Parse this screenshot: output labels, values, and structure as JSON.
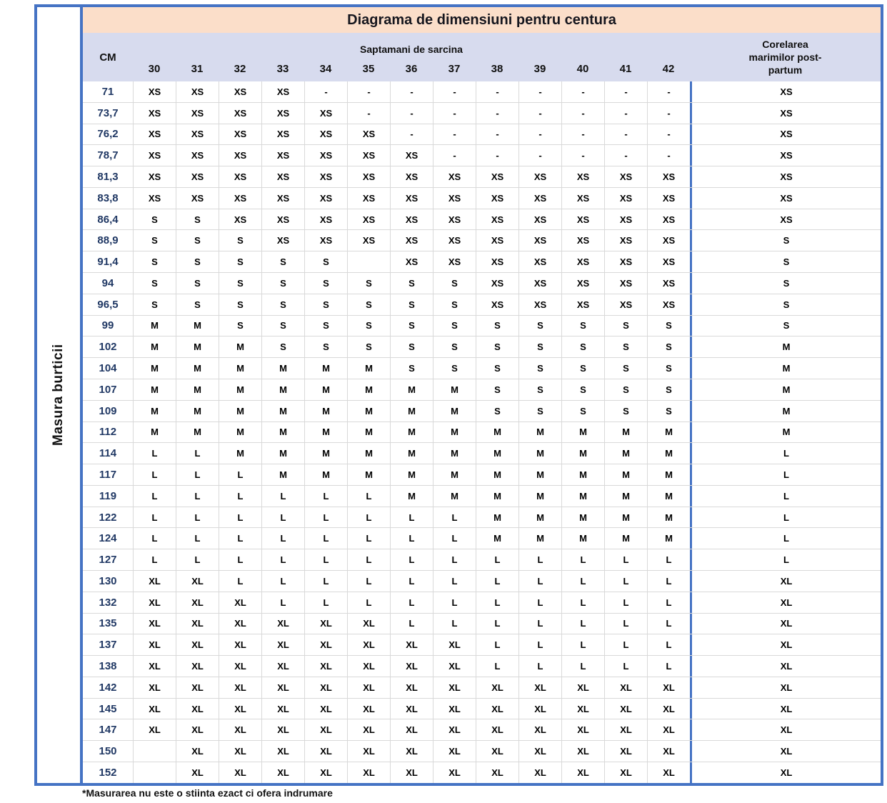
{
  "title": "Diagrama de dimensiuni pentru centura",
  "left_axis_label": "Masura burticii",
  "header": {
    "cm_label": "CM",
    "weeks_label": "Saptamani de sarcina",
    "weeks": [
      "30",
      "31",
      "32",
      "33",
      "34",
      "35",
      "36",
      "37",
      "38",
      "39",
      "40",
      "41",
      "42"
    ],
    "postpartum_label": "Corelarea marimilor post-partum"
  },
  "footnote": "*Masurarea nu este o stiinta ezact ci ofera indrumare",
  "colors": {
    "border_blue": "#4573C4",
    "title_bg": "#FBDEC9",
    "header_bg": "#D7DBEE",
    "gridline": "#D9D9D9",
    "cm_text": "#203864"
  },
  "chart_data": {
    "type": "table",
    "title": "Diagrama de dimensiuni pentru centura",
    "row_axis_label": "Masura burticii (CM)",
    "column_group_label": "Saptamani de sarcina",
    "columns": [
      "CM",
      "30",
      "31",
      "32",
      "33",
      "34",
      "35",
      "36",
      "37",
      "38",
      "39",
      "40",
      "41",
      "42",
      "Corelarea marimilor post-partum"
    ],
    "rows": [
      [
        "71",
        "XS",
        "XS",
        "XS",
        "XS",
        "-",
        "-",
        "-",
        "-",
        "-",
        "-",
        "-",
        "-",
        "-",
        "XS"
      ],
      [
        "73,7",
        "XS",
        "XS",
        "XS",
        "XS",
        "XS",
        "-",
        "-",
        "-",
        "-",
        "-",
        "-",
        "-",
        "-",
        "XS"
      ],
      [
        "76,2",
        "XS",
        "XS",
        "XS",
        "XS",
        "XS",
        "XS",
        "-",
        "-",
        "-",
        "-",
        "-",
        "-",
        "-",
        "XS"
      ],
      [
        "78,7",
        "XS",
        "XS",
        "XS",
        "XS",
        "XS",
        "XS",
        "XS",
        "-",
        "-",
        "-",
        "-",
        "-",
        "-",
        "XS"
      ],
      [
        "81,3",
        "XS",
        "XS",
        "XS",
        "XS",
        "XS",
        "XS",
        "XS",
        "XS",
        "XS",
        "XS",
        "XS",
        "XS",
        "XS",
        "XS"
      ],
      [
        "83,8",
        "XS",
        "XS",
        "XS",
        "XS",
        "XS",
        "XS",
        "XS",
        "XS",
        "XS",
        "XS",
        "XS",
        "XS",
        "XS",
        "XS"
      ],
      [
        "86,4",
        "S",
        "S",
        "XS",
        "XS",
        "XS",
        "XS",
        "XS",
        "XS",
        "XS",
        "XS",
        "XS",
        "XS",
        "XS",
        "XS"
      ],
      [
        "88,9",
        "S",
        "S",
        "S",
        "XS",
        "XS",
        "XS",
        "XS",
        "XS",
        "XS",
        "XS",
        "XS",
        "XS",
        "XS",
        "S"
      ],
      [
        "91,4",
        "S",
        "S",
        "S",
        "S",
        "S",
        "",
        "XS",
        "XS",
        "XS",
        "XS",
        "XS",
        "XS",
        "XS",
        "S"
      ],
      [
        "94",
        "S",
        "S",
        "S",
        "S",
        "S",
        "S",
        "S",
        "S",
        "XS",
        "XS",
        "XS",
        "XS",
        "XS",
        "S"
      ],
      [
        "96,5",
        "S",
        "S",
        "S",
        "S",
        "S",
        "S",
        "S",
        "S",
        "XS",
        "XS",
        "XS",
        "XS",
        "XS",
        "S"
      ],
      [
        "99",
        "M",
        "M",
        "S",
        "S",
        "S",
        "S",
        "S",
        "S",
        "S",
        "S",
        "S",
        "S",
        "S",
        "S"
      ],
      [
        "102",
        "M",
        "M",
        "M",
        "S",
        "S",
        "S",
        "S",
        "S",
        "S",
        "S",
        "S",
        "S",
        "S",
        "M"
      ],
      [
        "104",
        "M",
        "M",
        "M",
        "M",
        "M",
        "M",
        "S",
        "S",
        "S",
        "S",
        "S",
        "S",
        "S",
        "M"
      ],
      [
        "107",
        "M",
        "M",
        "M",
        "M",
        "M",
        "M",
        "M",
        "M",
        "S",
        "S",
        "S",
        "S",
        "S",
        "M"
      ],
      [
        "109",
        "M",
        "M",
        "M",
        "M",
        "M",
        "M",
        "M",
        "M",
        "S",
        "S",
        "S",
        "S",
        "S",
        "M"
      ],
      [
        "112",
        "M",
        "M",
        "M",
        "M",
        "M",
        "M",
        "M",
        "M",
        "M",
        "M",
        "M",
        "M",
        "M",
        "M"
      ],
      [
        "114",
        "L",
        "L",
        "M",
        "M",
        "M",
        "M",
        "M",
        "M",
        "M",
        "M",
        "M",
        "M",
        "M",
        "L"
      ],
      [
        "117",
        "L",
        "L",
        "L",
        "M",
        "M",
        "M",
        "M",
        "M",
        "M",
        "M",
        "M",
        "M",
        "M",
        "L"
      ],
      [
        "119",
        "L",
        "L",
        "L",
        "L",
        "L",
        "L",
        "M",
        "M",
        "M",
        "M",
        "M",
        "M",
        "M",
        "L"
      ],
      [
        "122",
        "L",
        "L",
        "L",
        "L",
        "L",
        "L",
        "L",
        "L",
        "M",
        "M",
        "M",
        "M",
        "M",
        "L"
      ],
      [
        "124",
        "L",
        "L",
        "L",
        "L",
        "L",
        "L",
        "L",
        "L",
        "M",
        "M",
        "M",
        "M",
        "M",
        "L"
      ],
      [
        "127",
        "L",
        "L",
        "L",
        "L",
        "L",
        "L",
        "L",
        "L",
        "L",
        "L",
        "L",
        "L",
        "L",
        "L"
      ],
      [
        "130",
        "XL",
        "XL",
        "L",
        "L",
        "L",
        "L",
        "L",
        "L",
        "L",
        "L",
        "L",
        "L",
        "L",
        "XL"
      ],
      [
        "132",
        "XL",
        "XL",
        "XL",
        "L",
        "L",
        "L",
        "L",
        "L",
        "L",
        "L",
        "L",
        "L",
        "L",
        "XL"
      ],
      [
        "135",
        "XL",
        "XL",
        "XL",
        "XL",
        "XL",
        "XL",
        "L",
        "L",
        "L",
        "L",
        "L",
        "L",
        "L",
        "XL"
      ],
      [
        "137",
        "XL",
        "XL",
        "XL",
        "XL",
        "XL",
        "XL",
        "XL",
        "XL",
        "L",
        "L",
        "L",
        "L",
        "L",
        "XL"
      ],
      [
        "138",
        "XL",
        "XL",
        "XL",
        "XL",
        "XL",
        "XL",
        "XL",
        "XL",
        "L",
        "L",
        "L",
        "L",
        "L",
        "XL"
      ],
      [
        "142",
        "XL",
        "XL",
        "XL",
        "XL",
        "XL",
        "XL",
        "XL",
        "XL",
        "XL",
        "XL",
        "XL",
        "XL",
        "XL",
        "XL"
      ],
      [
        "145",
        "XL",
        "XL",
        "XL",
        "XL",
        "XL",
        "XL",
        "XL",
        "XL",
        "XL",
        "XL",
        "XL",
        "XL",
        "XL",
        "XL"
      ],
      [
        "147",
        "XL",
        "XL",
        "XL",
        "XL",
        "XL",
        "XL",
        "XL",
        "XL",
        "XL",
        "XL",
        "XL",
        "XL",
        "XL",
        "XL"
      ],
      [
        "150",
        "",
        "XL",
        "XL",
        "XL",
        "XL",
        "XL",
        "XL",
        "XL",
        "XL",
        "XL",
        "XL",
        "XL",
        "XL",
        "XL"
      ],
      [
        "152",
        "",
        "XL",
        "XL",
        "XL",
        "XL",
        "XL",
        "XL",
        "XL",
        "XL",
        "XL",
        "XL",
        "XL",
        "XL",
        "XL"
      ]
    ]
  }
}
